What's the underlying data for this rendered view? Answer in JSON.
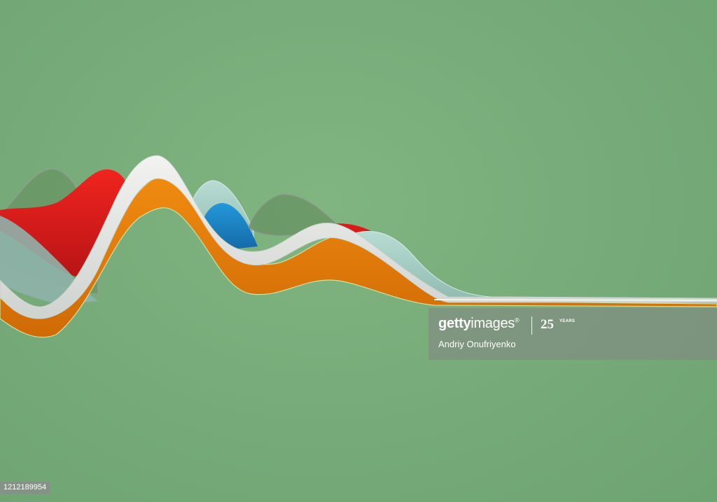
{
  "scene": {
    "background_color": "#76aa79",
    "ribbon_colors": {
      "red": "#e8221e",
      "white": "#e9eae8",
      "orange": "#e07a0c",
      "blue": "#1d86c6",
      "pale_teal": "#a9cfc7",
      "sage": "#6f9d6a"
    }
  },
  "watermark": {
    "brand_bold": "getty",
    "brand_light": "images",
    "brand_mark": "®",
    "anniversary_number": "25",
    "anniversary_label": "YEARS",
    "credit": "Andriy Onufriyenko"
  },
  "image_id": "1212189954"
}
